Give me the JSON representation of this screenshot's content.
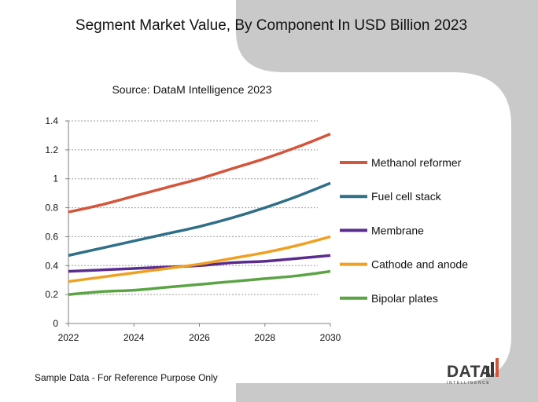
{
  "header": {
    "title": "Segment Market Value, By Component In USD Billion 2023",
    "source": "Source: DataM Intelligence  2023"
  },
  "footer": {
    "note": "Sample Data - For Reference Purpose Only"
  },
  "logo": {
    "word": "DATA",
    "sub": "INTELLIGENCE"
  },
  "chart_data": {
    "type": "line",
    "title": "Segment Market Value, By Component In USD Billion 2023",
    "subtitle": "Source: DataM Intelligence  2023",
    "xlabel": "",
    "ylabel": "",
    "x": [
      2022,
      2023,
      2024,
      2025,
      2026,
      2027,
      2028,
      2029,
      2030
    ],
    "x_ticks": [
      2022,
      2024,
      2026,
      2028,
      2030
    ],
    "ylim": [
      0,
      1.4
    ],
    "y_ticks": [
      0,
      0.2,
      0.4,
      0.6,
      0.8,
      1,
      1.2,
      1.4
    ],
    "grid": "horizontal dotted",
    "legend_position": "right",
    "series": [
      {
        "name": "Methanol reformer",
        "color": "#d4553a",
        "values": [
          0.77,
          0.82,
          0.88,
          0.94,
          1.0,
          1.07,
          1.14,
          1.22,
          1.31
        ]
      },
      {
        "name": "Fuel cell stack",
        "color": "#2f6f88",
        "values": [
          0.47,
          0.52,
          0.57,
          0.62,
          0.67,
          0.73,
          0.8,
          0.88,
          0.97
        ]
      },
      {
        "name": "Membrane",
        "color": "#5b2c8f",
        "values": [
          0.36,
          0.37,
          0.38,
          0.39,
          0.4,
          0.42,
          0.43,
          0.45,
          0.47
        ]
      },
      {
        "name": "Cathode and anode",
        "color": "#f0a020",
        "values": [
          0.29,
          0.32,
          0.35,
          0.38,
          0.41,
          0.45,
          0.49,
          0.54,
          0.6
        ]
      },
      {
        "name": "Bipolar plates",
        "color": "#5aa444",
        "values": [
          0.2,
          0.22,
          0.23,
          0.25,
          0.27,
          0.29,
          0.31,
          0.33,
          0.36
        ]
      }
    ]
  }
}
